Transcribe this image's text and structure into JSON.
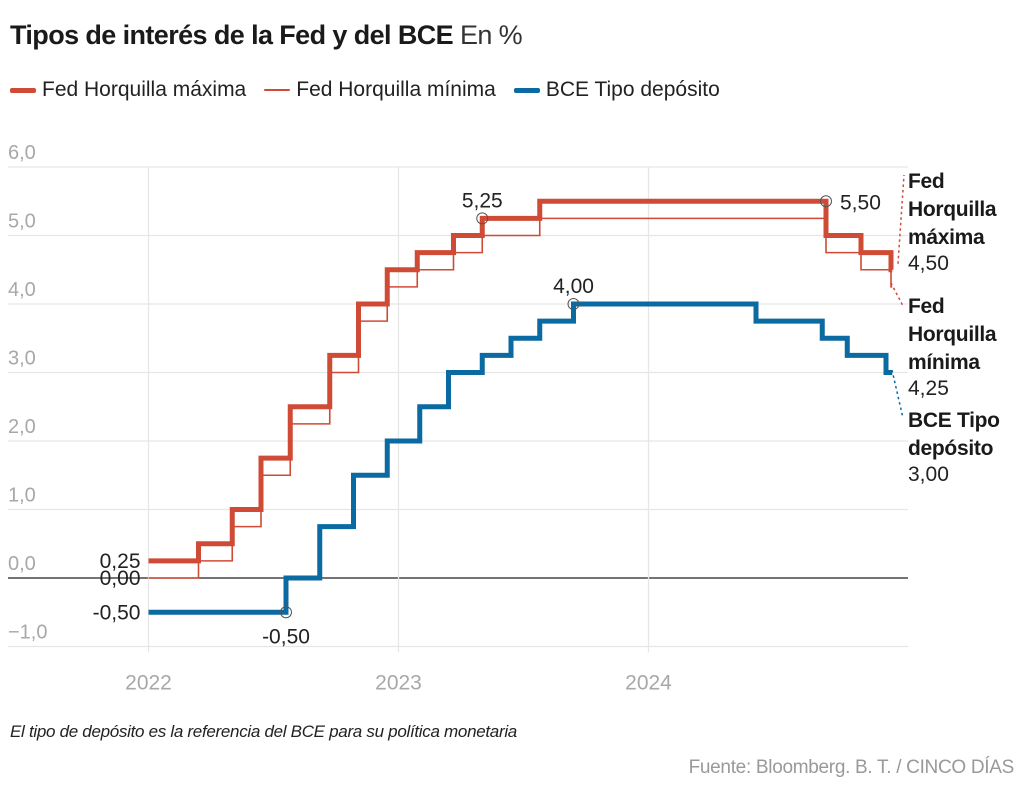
{
  "header": {
    "title": "Tipos de interés de la Fed y del BCE",
    "unit": "En %"
  },
  "legend": [
    {
      "label": "Fed Horquilla máxima",
      "style": "thick",
      "color": "#cf4b36"
    },
    {
      "label": "Fed Horquilla mínima",
      "style": "thin",
      "color": "#cf4b36"
    },
    {
      "label": "BCE Tipo depósito",
      "style": "thick",
      "color": "#0a6aa1"
    }
  ],
  "footer": {
    "note": "El tipo de depósito es la referencia del BCE para su política monetaria",
    "source": "Fuente: Bloomberg. B. T. / CINCO DÍAS"
  },
  "chart_data": {
    "type": "line",
    "step": true,
    "title": "Tipos de interés de la Fed y del BCE",
    "subtitle": "En %",
    "xlabel": "",
    "ylabel": "",
    "xlim": [
      2022.0,
      2025.03
    ],
    "ylim": [
      -1.0,
      6.0
    ],
    "x_ticks": [
      2022,
      2023,
      2024
    ],
    "x_tick_labels": [
      "2022",
      "2023",
      "2024"
    ],
    "y_ticks": [
      -1,
      0,
      1,
      2,
      3,
      4,
      5,
      6
    ],
    "y_tick_labels": [
      "−1,0",
      "0,0",
      "1,0",
      "2,0",
      "3,0",
      "4,0",
      "5,0",
      "6,0"
    ],
    "grid": true,
    "legend_position": "top",
    "series": [
      {
        "name": "Fed Horquilla máxima",
        "color": "#cf4b36",
        "weight": "thick",
        "x": [
          2022.0,
          2022.2,
          2022.335,
          2022.45,
          2022.567,
          2022.725,
          2022.84,
          2022.955,
          2023.075,
          2023.22,
          2023.335,
          2023.565,
          2024.71,
          2024.85,
          2024.97,
          2024.975
        ],
        "y": [
          0.25,
          0.5,
          1.0,
          1.75,
          2.5,
          3.25,
          4.0,
          4.5,
          4.75,
          5.0,
          5.25,
          5.5,
          5.0,
          4.75,
          4.5,
          4.5
        ]
      },
      {
        "name": "Fed Horquilla mínima",
        "color": "#cf4b36",
        "weight": "thin",
        "x": [
          2022.0,
          2022.2,
          2022.335,
          2022.45,
          2022.567,
          2022.725,
          2022.84,
          2022.955,
          2023.075,
          2023.22,
          2023.335,
          2023.565,
          2024.71,
          2024.85,
          2024.97,
          2024.975
        ],
        "y": [
          0.0,
          0.25,
          0.75,
          1.5,
          2.25,
          3.0,
          3.75,
          4.25,
          4.5,
          4.75,
          5.0,
          5.25,
          4.75,
          4.5,
          4.25,
          4.25
        ]
      },
      {
        "name": "BCE Tipo depósito",
        "color": "#0a6aa1",
        "weight": "thick",
        "x": [
          2022.0,
          2022.55,
          2022.685,
          2022.82,
          2022.955,
          2023.085,
          2023.2,
          2023.335,
          2023.45,
          2023.565,
          2023.7,
          2024.43,
          2024.695,
          2024.795,
          2024.95,
          2024.975
        ],
        "y": [
          -0.5,
          0.0,
          0.75,
          1.5,
          2.0,
          2.5,
          3.0,
          3.25,
          3.5,
          3.75,
          4.0,
          3.75,
          3.5,
          3.25,
          3.0,
          3.0
        ]
      }
    ],
    "annotations": [
      {
        "text": "0,25",
        "series": 0,
        "x": 2022.0,
        "y": 0.25,
        "anchor": "left-label"
      },
      {
        "text": "0,00",
        "series": 1,
        "x": 2022.0,
        "y": 0.0,
        "anchor": "left-label"
      },
      {
        "text": "-0,50",
        "series": 2,
        "x": 2022.0,
        "y": -0.5,
        "anchor": "left-label"
      },
      {
        "text": "-0,50",
        "series": 2,
        "x": 2022.55,
        "y": -0.5,
        "anchor": "below",
        "marker": true
      },
      {
        "text": "5,25",
        "series": 0,
        "x": 2023.335,
        "y": 5.25,
        "anchor": "above",
        "marker": true
      },
      {
        "text": "4,00",
        "series": 2,
        "x": 2023.7,
        "y": 4.0,
        "anchor": "above",
        "marker": true
      },
      {
        "text": "5,50",
        "series": 0,
        "x": 2024.71,
        "y": 5.5,
        "anchor": "right",
        "marker": true
      }
    ],
    "end_labels": [
      {
        "series": "Fed Horquilla máxima",
        "name_lines": [
          "Fed",
          "Horquilla",
          "máxima"
        ],
        "value": "4,50"
      },
      {
        "series": "Fed Horquilla mínima",
        "name_lines": [
          "Fed",
          "Horquilla",
          "mínima"
        ],
        "value": "4,25"
      },
      {
        "series": "BCE Tipo depósito",
        "name_lines": [
          "BCE Tipo",
          "depósito"
        ],
        "value": "3,00"
      }
    ]
  }
}
